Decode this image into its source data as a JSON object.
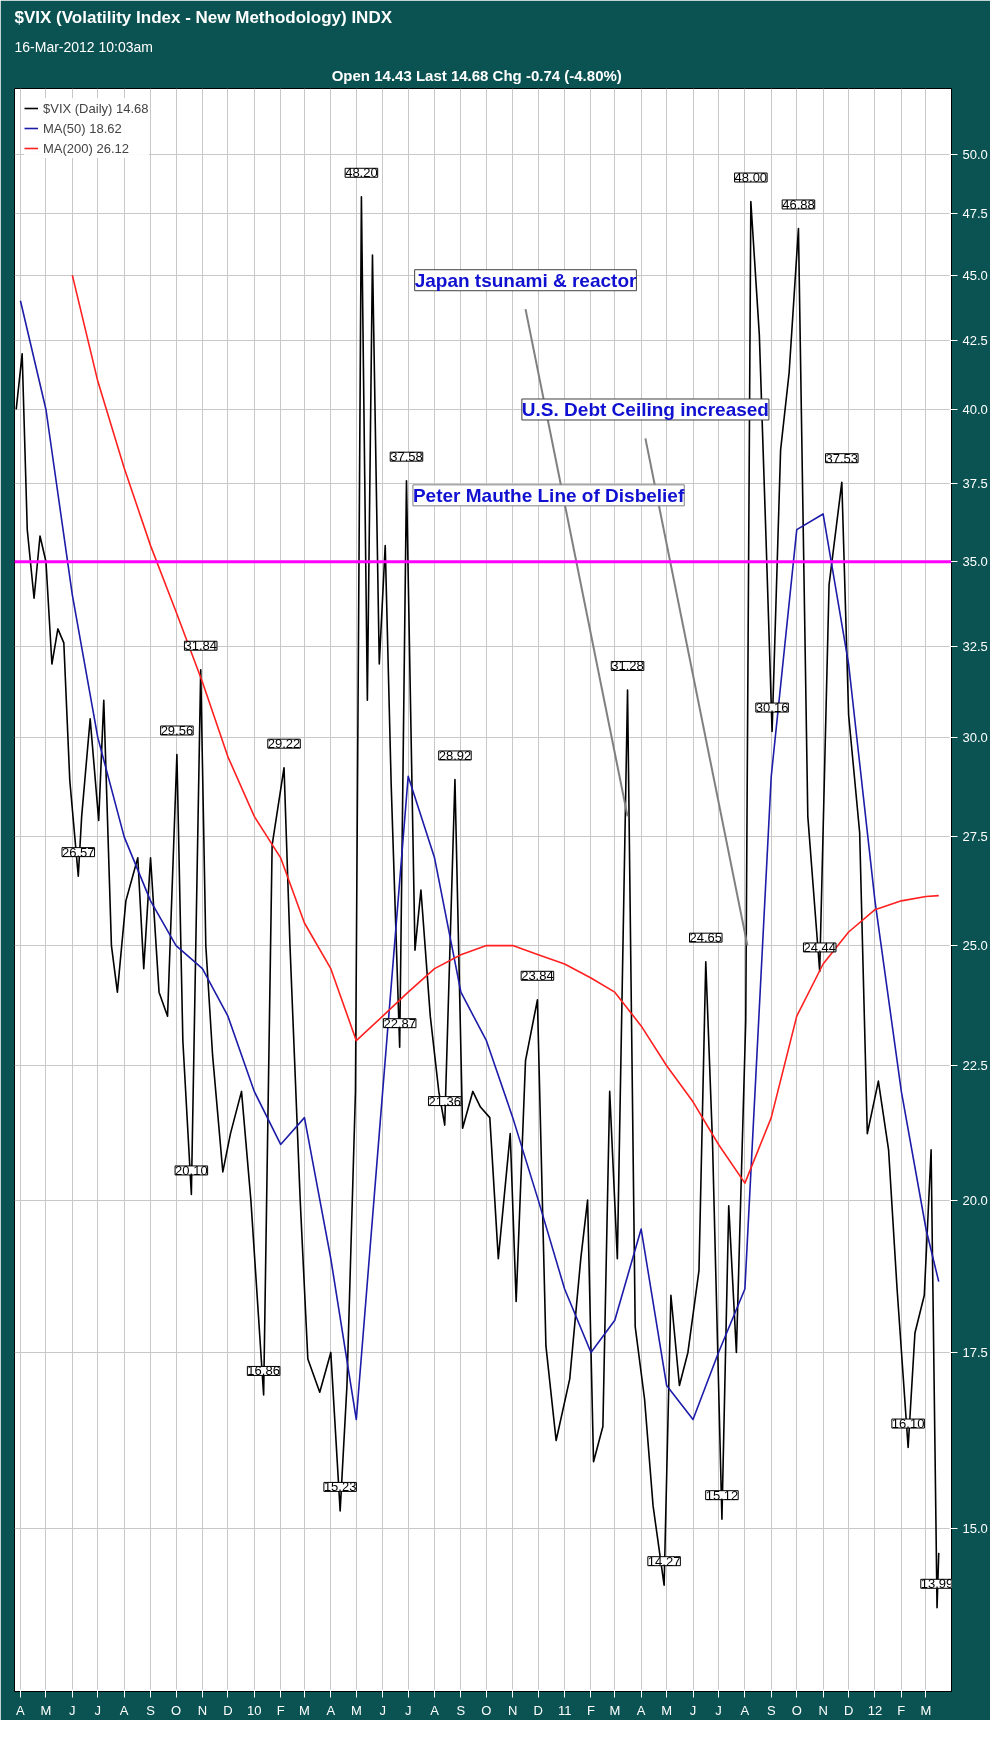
{
  "chart_data": {
    "type": "line",
    "title": "$VIX (Volatility Index - New Methodology) INDX",
    "subtitle": "16-Mar-2012 10:03am",
    "log": true,
    "grid": true,
    "legend": "top left",
    "ylim": [
      13,
      53
    ],
    "yticks": [
      {
        "value": 15,
        "label": "15.0"
      },
      {
        "value": 17.5,
        "label": "17.5"
      },
      {
        "value": 20,
        "label": "20.0"
      },
      {
        "value": 22.5,
        "label": "22.5"
      },
      {
        "value": 25,
        "label": "25.0"
      },
      {
        "value": 27.5,
        "label": "27.5"
      },
      {
        "value": 30,
        "label": "30.0"
      },
      {
        "value": 32.5,
        "label": "32.5"
      },
      {
        "value": 35,
        "label": "35.0"
      },
      {
        "value": 37.5,
        "label": "37.5"
      },
      {
        "value": 40,
        "label": "40.0"
      },
      {
        "value": 42.5,
        "label": "42.5"
      },
      {
        "value": 45,
        "label": "45.0"
      },
      {
        "value": 47.5,
        "label": "47.5"
      },
      {
        "value": 50,
        "label": "50.0"
      }
    ],
    "xlim": [
      "2009-03-25",
      "2012-03-31"
    ],
    "xticks": [
      {
        "value": "2009-04-01",
        "label": "A"
      },
      {
        "value": "2009-05-01",
        "label": "M"
      },
      {
        "value": "2009-06-01",
        "label": "J"
      },
      {
        "value": "2009-07-01",
        "label": "J"
      },
      {
        "value": "2009-08-01",
        "label": "A"
      },
      {
        "value": "2009-09-01",
        "label": "S"
      },
      {
        "value": "2009-10-01",
        "label": "O"
      },
      {
        "value": "2009-11-01",
        "label": "N"
      },
      {
        "value": "2009-12-01",
        "label": "D"
      },
      {
        "value": "2010-01-01",
        "label": "10"
      },
      {
        "value": "2010-02-01",
        "label": "F"
      },
      {
        "value": "2010-03-01",
        "label": "M"
      },
      {
        "value": "2010-04-01",
        "label": "A"
      },
      {
        "value": "2010-05-01",
        "label": "M"
      },
      {
        "value": "2010-06-01",
        "label": "J"
      },
      {
        "value": "2010-07-01",
        "label": "J"
      },
      {
        "value": "2010-08-01",
        "label": "A"
      },
      {
        "value": "2010-09-01",
        "label": "S"
      },
      {
        "value": "2010-10-01",
        "label": "O"
      },
      {
        "value": "2010-11-01",
        "label": "N"
      },
      {
        "value": "2010-12-01",
        "label": "D"
      },
      {
        "value": "2011-01-01",
        "label": "11"
      },
      {
        "value": "2011-02-01",
        "label": "F"
      },
      {
        "value": "2011-03-01",
        "label": "M"
      },
      {
        "value": "2011-04-01",
        "label": "A"
      },
      {
        "value": "2011-05-01",
        "label": "M"
      },
      {
        "value": "2011-06-01",
        "label": "J"
      },
      {
        "value": "2011-07-01",
        "label": "J"
      },
      {
        "value": "2011-08-01",
        "label": "A"
      },
      {
        "value": "2011-09-01",
        "label": "S"
      },
      {
        "value": "2011-10-01",
        "label": "O"
      },
      {
        "value": "2011-11-01",
        "label": "N"
      },
      {
        "value": "2011-12-01",
        "label": "D"
      },
      {
        "value": "2012-01-01",
        "label": "12"
      },
      {
        "value": "2012-02-01",
        "label": "F"
      },
      {
        "value": "2012-03-01",
        "label": "M"
      }
    ],
    "x": [
      "2009-03-27",
      "2009-04-03",
      "2009-04-09",
      "2009-04-17",
      "2009-04-24",
      "2009-05-01",
      "2009-05-08",
      "2009-05-15",
      "2009-05-22",
      "2009-05-29",
      "2009-06-08",
      "2009-06-12",
      "2009-06-22",
      "2009-07-02",
      "2009-07-08",
      "2009-07-17",
      "2009-07-24",
      "2009-08-03",
      "2009-08-17",
      "2009-08-24",
      "2009-09-01",
      "2009-09-11",
      "2009-09-21",
      "2009-10-02",
      "2009-10-09",
      "2009-10-19",
      "2009-10-30",
      "2009-11-05",
      "2009-11-13",
      "2009-11-25",
      "2009-12-04",
      "2009-12-17",
      "2009-12-28",
      "2010-01-12",
      "2010-01-22",
      "2010-02-05",
      "2010-02-12",
      "2010-02-24",
      "2010-03-05",
      "2010-03-19",
      "2010-04-01",
      "2010-04-12",
      "2010-04-20",
      "2010-04-30",
      "2010-05-07",
      "2010-05-14",
      "2010-05-20",
      "2010-05-28",
      "2010-06-04",
      "2010-06-11",
      "2010-06-21",
      "2010-06-29",
      "2010-07-09",
      "2010-07-16",
      "2010-07-27",
      "2010-08-06",
      "2010-08-13",
      "2010-08-25",
      "2010-09-03",
      "2010-09-15",
      "2010-09-24",
      "2010-10-05",
      "2010-10-15",
      "2010-10-29",
      "2010-11-05",
      "2010-11-16",
      "2010-11-30",
      "2010-12-10",
      "2010-12-22",
      "2011-01-07",
      "2011-01-20",
      "2011-01-28",
      "2011-02-04",
      "2011-02-15",
      "2011-02-23",
      "2011-03-04",
      "2011-03-16",
      "2011-03-25",
      "2011-04-05",
      "2011-04-15",
      "2011-04-28",
      "2011-05-06",
      "2011-05-16",
      "2011-05-26",
      "2011-06-08",
      "2011-06-16",
      "2011-06-24",
      "2011-07-05",
      "2011-07-13",
      "2011-07-22",
      "2011-08-02",
      "2011-08-08",
      "2011-08-18",
      "2011-08-26",
      "2011-09-02",
      "2011-09-12",
      "2011-09-22",
      "2011-10-03",
      "2011-10-14",
      "2011-10-28",
      "2011-11-08",
      "2011-11-23",
      "2011-12-01",
      "2011-12-14",
      "2011-12-23",
      "2012-01-05",
      "2012-01-17",
      "2012-01-27",
      "2012-02-09",
      "2012-02-17",
      "2012-02-28",
      "2012-03-07",
      "2012-03-14",
      "2012-03-16"
    ],
    "series": [
      {
        "name": "$VIX (Daily) 14.68",
        "color": "#000000",
        "values": [
          40,
          42,
          36,
          33.9,
          35.8,
          35,
          32,
          33,
          32.6,
          28.9,
          26.57,
          28,
          30.5,
          27.9,
          31,
          25,
          24,
          26,
          27,
          24.5,
          27,
          24,
          23.5,
          29.56,
          23,
          20.1,
          31.84,
          25,
          22.7,
          20.5,
          21.2,
          22,
          20,
          16.86,
          27.3,
          29.22,
          25,
          20,
          17.4,
          16.9,
          17.5,
          15.23,
          17,
          22,
          48.2,
          31,
          45.8,
          32,
          35.5,
          28.8,
          22.87,
          37.58,
          24.9,
          26.25,
          23.5,
          22,
          21.36,
          28.92,
          21.3,
          22,
          21.7,
          21.5,
          19,
          21.2,
          18.3,
          22.6,
          23.84,
          17.6,
          16.2,
          17.1,
          19,
          20,
          15.9,
          16.4,
          22,
          19,
          31.28,
          17.9,
          16.8,
          15.3,
          14.27,
          18.4,
          17,
          17.5,
          18.8,
          24.65,
          21,
          15.12,
          19.9,
          17.5,
          23.4,
          48.0,
          42.7,
          35.6,
          30.16,
          38.6,
          41.3,
          46.88,
          28,
          24.44,
          34.3,
          37.53,
          30.6,
          27.6,
          21.2,
          22.2,
          20.9,
          18.5,
          16.1,
          17.8,
          18.4,
          20.9,
          13.99,
          14.68
        ]
      },
      {
        "name": "MA(50) 18.62",
        "color": "#1c1ca8",
        "x": [
          "2009-04-01",
          "2009-05-01",
          "2009-06-01",
          "2009-07-01",
          "2009-08-01",
          "2009-09-01",
          "2009-10-01",
          "2009-11-01",
          "2009-12-01",
          "2010-01-01",
          "2010-02-01",
          "2010-03-01",
          "2010-04-01",
          "2010-05-01",
          "2010-06-01",
          "2010-07-01",
          "2010-08-01",
          "2010-09-01",
          "2010-10-01",
          "2010-11-01",
          "2010-12-01",
          "2011-01-01",
          "2011-02-01",
          "2011-03-01",
          "2011-04-01",
          "2011-05-01",
          "2011-06-01",
          "2011-07-01",
          "2011-08-01",
          "2011-09-01",
          "2011-10-01",
          "2011-11-01",
          "2011-12-01",
          "2012-01-01",
          "2012-02-01",
          "2012-03-01",
          "2012-03-16"
        ],
        "values": [
          44,
          40,
          34,
          30,
          27.5,
          26,
          25,
          24.5,
          23.5,
          22,
          21,
          21.5,
          19,
          16.5,
          22,
          29,
          27,
          24,
          23,
          21.5,
          20,
          18.5,
          17.5,
          18,
          19.5,
          17,
          16.5,
          17.5,
          18.5,
          29,
          36,
          36.5,
          32,
          26,
          22,
          19.5,
          18.62
        ]
      },
      {
        "name": "MA(200) 26.12",
        "color": "#ff2020",
        "x": [
          "2009-06-01",
          "2009-07-01",
          "2009-08-01",
          "2009-09-01",
          "2009-10-01",
          "2009-11-01",
          "2009-12-01",
          "2010-01-01",
          "2010-02-01",
          "2010-03-01",
          "2010-04-01",
          "2010-05-01",
          "2010-06-01",
          "2010-07-01",
          "2010-08-01",
          "2010-09-01",
          "2010-10-01",
          "2010-11-01",
          "2010-12-01",
          "2011-01-01",
          "2011-02-01",
          "2011-03-01",
          "2011-04-01",
          "2011-05-01",
          "2011-06-01",
          "2011-07-01",
          "2011-08-01",
          "2011-09-01",
          "2011-10-01",
          "2011-11-01",
          "2011-12-01",
          "2012-01-01",
          "2012-02-01",
          "2012-03-01",
          "2012-03-16"
        ],
        "values": [
          45,
          41,
          38,
          35.5,
          33.5,
          31.5,
          29.5,
          28,
          27,
          25.5,
          24.5,
          23,
          23.5,
          24,
          24.5,
          24.8,
          25,
          25,
          24.8,
          24.6,
          24.3,
          24,
          23.3,
          22.5,
          21.8,
          21,
          20.3,
          21.5,
          23.5,
          24.6,
          25.3,
          25.8,
          26,
          26.1,
          26.12
        ]
      }
    ],
    "ref_lines": [
      {
        "axis": "y",
        "value": 35,
        "label": "Peter Mauthe Line of Disbelief",
        "color": "#ff00ff"
      }
    ],
    "annotations": [
      "Open 14.43",
      "Last 14.68 Chg -0.74 (-4.80%)",
      {
        "text": "26.57",
        "x": "2009-06-08",
        "y": 26.57
      },
      {
        "text": "29.56",
        "x": "2009-10-02",
        "y": 29.56
      },
      {
        "text": "20.10",
        "x": "2009-10-19",
        "y": 20.1
      },
      {
        "text": "31.84",
        "x": "2009-10-30",
        "y": 31.84
      },
      {
        "text": "16.86",
        "x": "2010-01-12",
        "y": 16.86
      },
      {
        "text": "29.22",
        "x": "2010-02-05",
        "y": 29.22
      },
      {
        "text": "15.23",
        "x": "2010-04-12",
        "y": 15.23
      },
      {
        "text": "48.20",
        "x": "2010-05-07",
        "y": 48.2
      },
      {
        "text": "22.87",
        "x": "2010-06-21",
        "y": 22.87
      },
      {
        "text": "37.58",
        "x": "2010-06-29",
        "y": 37.58
      },
      {
        "text": "21.36",
        "x": "2010-08-13",
        "y": 21.36
      },
      {
        "text": "28.92",
        "x": "2010-08-25",
        "y": 28.92
      },
      {
        "text": "23.84",
        "x": "2010-11-30",
        "y": 23.84
      },
      {
        "text": "31.28",
        "x": "2011-03-16",
        "y": 31.28
      },
      {
        "text": "14.27",
        "x": "2011-04-28",
        "y": 14.27
      },
      {
        "text": "24.65",
        "x": "2011-06-16",
        "y": 24.65
      },
      {
        "text": "15.12",
        "x": "2011-07-05",
        "y": 15.12
      },
      {
        "text": "48.00",
        "x": "2011-08-08",
        "y": 48.0
      },
      {
        "text": "30.16",
        "x": "2011-09-02",
        "y": 30.16
      },
      {
        "text": "46.88",
        "x": "2011-10-03",
        "y": 46.88
      },
      {
        "text": "24.44",
        "x": "2011-10-28",
        "y": 24.44
      },
      {
        "text": "37.53",
        "x": "2011-11-23",
        "y": 37.53
      },
      {
        "text": "16.10",
        "x": "2012-02-09",
        "y": 16.1
      },
      {
        "text": "13.99",
        "x": "2012-03-14",
        "y": 13.99
      },
      {
        "text": "Japan tsunami & reactor",
        "x": "2011-03-16",
        "y": 28
      },
      {
        "text": "U.S. Debt Ceiling increased",
        "x": "2011-08-04",
        "y": 25
      }
    ]
  }
}
